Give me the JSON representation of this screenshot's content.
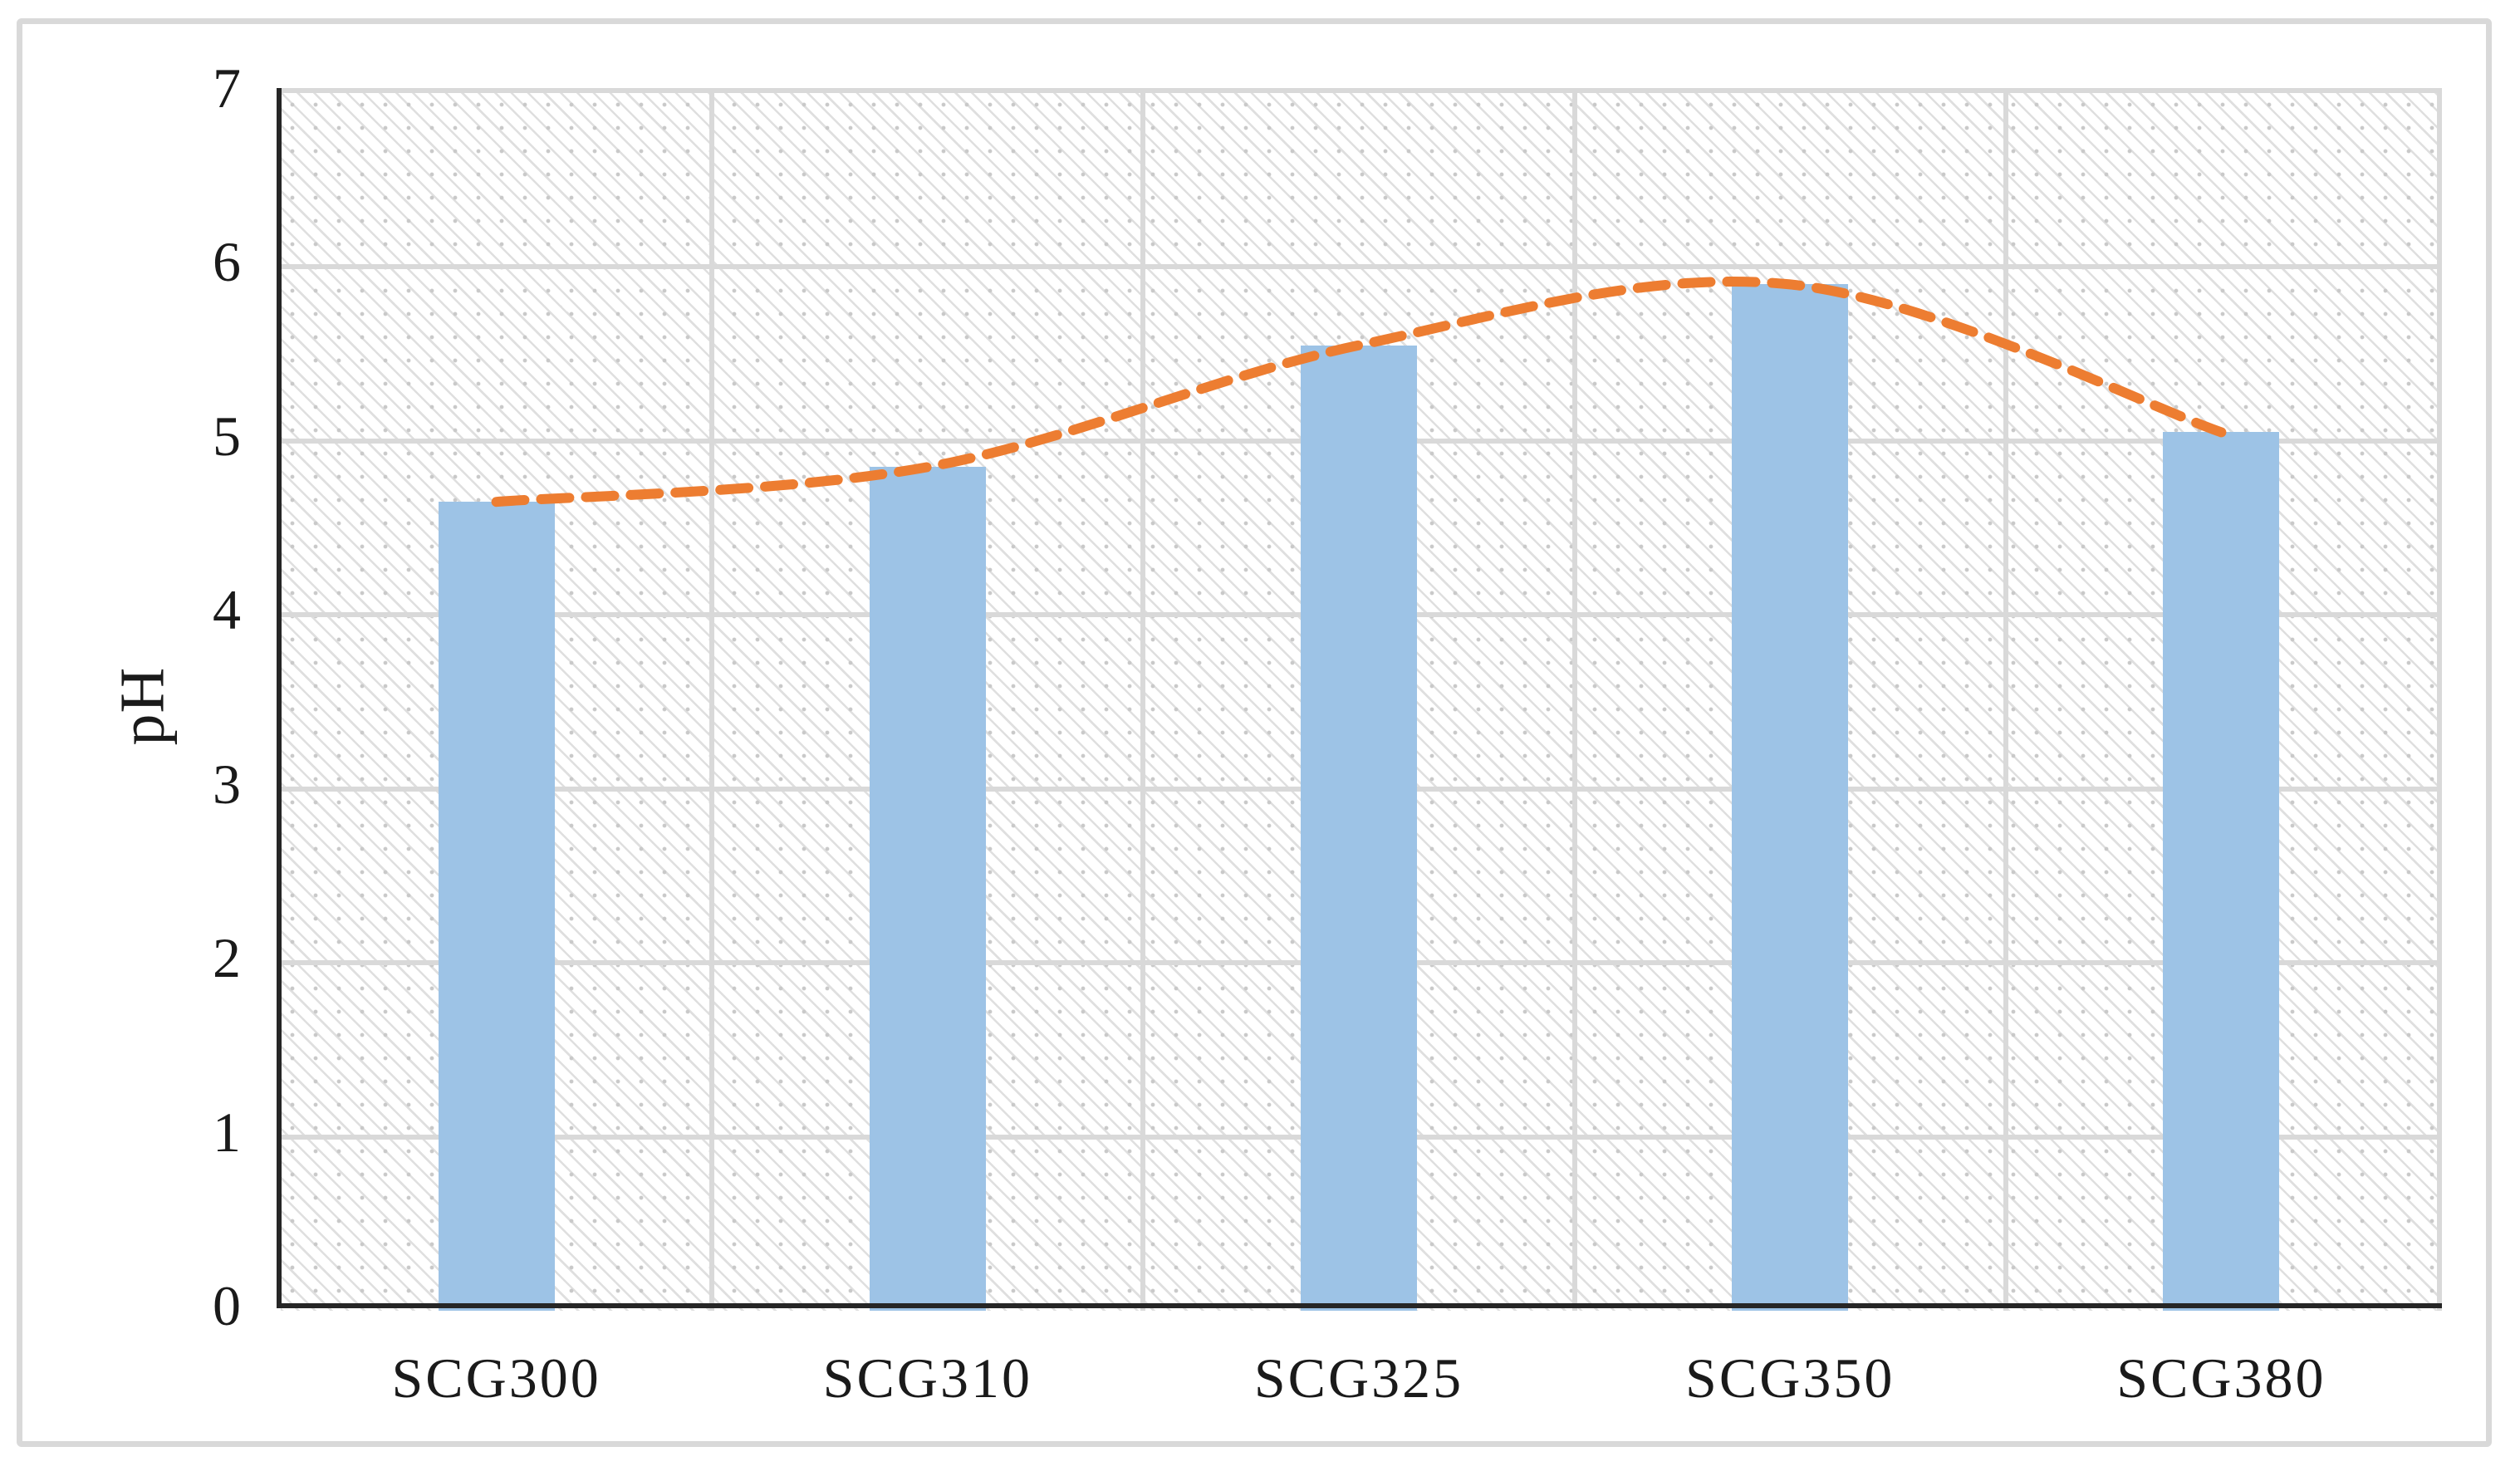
{
  "chart_data": {
    "type": "bar",
    "categories": [
      "SCG300",
      "SCG310",
      "SCG325",
      "SCG350",
      "SCG380"
    ],
    "series": [
      {
        "name": "pH bars",
        "type": "bar",
        "values": [
          4.65,
          4.85,
          5.55,
          5.9,
          5.05
        ],
        "color": "#9DC3E6"
      },
      {
        "name": "pH trend",
        "type": "line",
        "line_style": "dashed-smooth",
        "values": [
          4.65,
          4.85,
          5.55,
          5.9,
          5.05
        ],
        "color": "#ED7D31"
      }
    ],
    "title": "",
    "xlabel": "",
    "ylabel": "pH",
    "ylim": [
      0,
      7
    ],
    "ytick_step": 1,
    "yticks": [
      0,
      1,
      2,
      3,
      4,
      5,
      6,
      7
    ],
    "grid": true,
    "legend_position": "none",
    "plot_background": "diagonal-hatch-with-dots"
  },
  "styles": {
    "bar_color": "#9DC3E6",
    "trend_color": "#ED7D31",
    "gridline_color": "#D9D9D9",
    "axis_color": "#262626",
    "frame_border_color": "#D9D9D9",
    "text_color": "#1A1A1A"
  }
}
